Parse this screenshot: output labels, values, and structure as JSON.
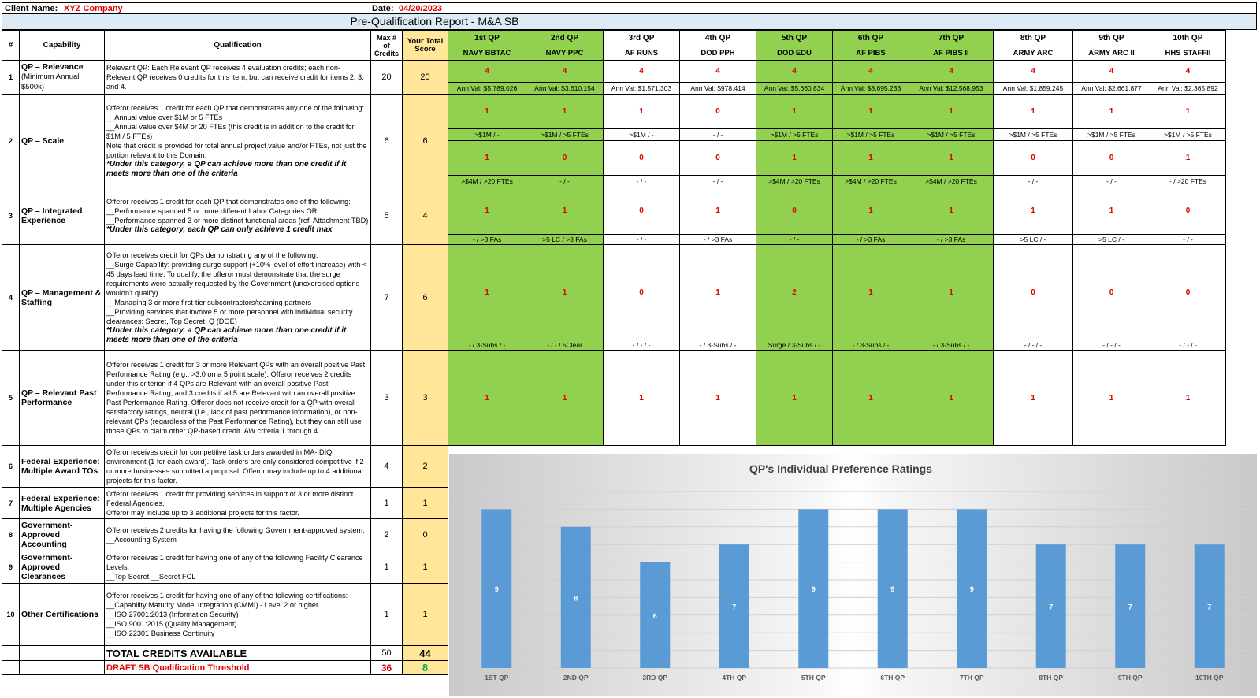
{
  "header": {
    "client_label": "Client Name:",
    "client_value": "XYZ Company",
    "date_label": "Date:",
    "date_value": "04/20/2023",
    "title": "Pre-Qualification Report - M&A SB"
  },
  "columns": {
    "num": "#",
    "capability": "Capability",
    "qualification": "Qualification",
    "max": "Max # of Credits",
    "score": "Your Total Score"
  },
  "qps": [
    {
      "label": "1st QP",
      "name": "NAVY BBTAC",
      "green": true
    },
    {
      "label": "2nd QP",
      "name": "NAVY PPC",
      "green": true
    },
    {
      "label": "3rd QP",
      "name": "AF RUNS",
      "green": false
    },
    {
      "label": "4th QP",
      "name": "DOD PPH",
      "green": false
    },
    {
      "label": "5th QP",
      "name": "DOD EDU",
      "green": true
    },
    {
      "label": "6th QP",
      "name": "AF PIBS",
      "green": true
    },
    {
      "label": "7th QP",
      "name": "AF PIBS II",
      "green": true
    },
    {
      "label": "8th QP",
      "name": "ARMY ARC",
      "green": false
    },
    {
      "label": "9th QP",
      "name": "ARMY ARC II",
      "green": false
    },
    {
      "label": "10th QP",
      "name": "HHS STAFFII",
      "green": false
    }
  ],
  "rows": [
    {
      "num": "1",
      "capability": "QP – Relevance",
      "capability_note": "(Minimum Annual $500k)",
      "qualification": "Relevant QP: Each Relevant QP receives 4 evaluation credits; each non-Relevant QP receives 0 credits for this item, but can receive credit for items 2, 3, and 4.",
      "note": "",
      "max": "20",
      "score": "20",
      "vals": [
        "4",
        "4",
        "4",
        "4",
        "4",
        "4",
        "4",
        "4",
        "4",
        "4"
      ],
      "subs": [
        "Ann Val: $5,789,026",
        "Ann Val: $3,610,154",
        "Ann Val: $1,571,303",
        "Ann Val: $978,414",
        "Ann Val: $5,660,834",
        "Ann Val: $8,695,233",
        "Ann Val: $12,568,953",
        "Ann Val: $1,859,245",
        "Ann Val: $2,661,877",
        "Ann Val: $2,365,892"
      ]
    },
    {
      "num": "2",
      "capability": "QP – Scale",
      "capability_note": "",
      "qualification": "Offeror receives 1 credit for each QP that demonstrates any one of the following:\n__Annual value over $1M or 5 FTEs\n__Annual value over $4M or 20 FTEs (this credit is in addition to the credit for $1M / 5 FTEs)\nNote that credit is provided for total annual project value and/or FTEs, not just the portion relevant to this Domain.",
      "note": "*Under this category, a QP can achieve more than one credit if it meets more than one of the criteria",
      "max": "6",
      "score": "6",
      "vals": [
        "1",
        "1",
        "1",
        "0",
        "1",
        "1",
        "1",
        "1",
        "1",
        "1"
      ],
      "subs": [
        ">$1M / -",
        ">$1M / >5 FTEs",
        ">$1M / -",
        "- / -",
        ">$1M / >5 FTEs",
        ">$1M / >5 FTEs",
        ">$1M / >5 FTEs",
        ">$1M / >5 FTEs",
        ">$1M / >5 FTEs",
        ">$1M / >5 FTEs"
      ],
      "vals2": [
        "1",
        "0",
        "0",
        "0",
        "1",
        "1",
        "1",
        "0",
        "0",
        "1"
      ],
      "subs2": [
        ">$4M / >20 FTEs",
        "- / -",
        "- / -",
        "- / -",
        ">$4M / >20 FTEs",
        ">$4M / >20 FTEs",
        ">$4M / >20 FTEs",
        "- / -",
        "- / -",
        "- / >20 FTEs"
      ]
    },
    {
      "num": "3",
      "capability": "QP – Integrated Experience",
      "capability_note": "",
      "qualification": "Offeror receives 1 credit for each QP that demonstrates one of the following:\n__Performance spanned 5 or more different Labor Categories OR\n__Performance spanned 3 or more distinct functional areas (ref. Attachment TBD)",
      "note": "*Under this category, each QP can only achieve 1 credit max",
      "max": "5",
      "score": "4",
      "vals": [
        "1",
        "1",
        "0",
        "1",
        "0",
        "1",
        "1",
        "1",
        "1",
        "0"
      ],
      "subs": [
        "- / >3 FAs",
        ">5 LC / >3 FAs",
        "- / -",
        "- / >3 FAs",
        "- / -",
        "- / >3 FAs",
        "- / >3 FAs",
        ">5 LC / -",
        ">5 LC / -",
        "- / -"
      ]
    },
    {
      "num": "4",
      "capability": "QP – Management & Staffing",
      "capability_note": "",
      "qualification": "Offeror receives credit for QPs demonstrating any of the following:\n__Surge Capability: providing surge support (+10% level of effort increase) with < 45 days lead time. To qualify, the offeror must demonstrate that the surge requirements were actually requested by the Government (unexercised options wouldn't qualify)\n__Managing 3 or more first-tier subcontractors/teaming partners\n__Providing services that involve 5 or more personnel with individual security clearances: Secret, Top Secret, Q (DOE)",
      "note": "*Under this category, a QP can achieve more than one credit if it meets more than one of the criteria",
      "max": "7",
      "score": "6",
      "vals": [
        "1",
        "1",
        "0",
        "1",
        "2",
        "1",
        "1",
        "0",
        "0",
        "0"
      ],
      "subs": [
        "- / 3-Subs / -",
        "- / - / 5Clear",
        "- / - / -",
        "- / 3-Subs / -",
        "Surge / 3-Subs / -",
        "- / 3-Subs / -",
        "- / 3-Subs / -",
        "- / - / -",
        "- / - / -",
        "- / - / -"
      ]
    },
    {
      "num": "5",
      "capability": "QP – Relevant Past Performance",
      "capability_note": "",
      "qualification": "Offeror receives 1 credit for 3 or more Relevant QPs with an overall positive Past Performance Rating (e.g., >3.0 on a 5 point scale). Offeror receives 2 credits under this criterion if 4 QPs are Relevant with an overall positive Past Performance Rating, and 3 credits if all 5 are Relevant with an overall positive Past Performance Rating. Offeror does not receive credit for a QP with overall satisfactory ratings, neutral (i.e., lack of past performance information), or non-relevant QPs (regardless of the Past Performance Rating), but they can still use those QPs to claim other QP-based credit IAW criteria 1 through 4.",
      "note": "",
      "max": "3",
      "score": "3",
      "vals": [
        "1",
        "1",
        "1",
        "1",
        "1",
        "1",
        "1",
        "1",
        "1",
        "1"
      ]
    },
    {
      "num": "6",
      "capability": "Federal Experience: Multiple Award TOs",
      "capability_note": "",
      "qualification": "Offeror receives credit for competitive task orders awarded in MA-IDIQ environment (1 for each award). Task orders are only considered competitive if 2 or more businesses submitted a proposal. Offeror may include up to 4 additional projects for this factor.",
      "note": "",
      "max": "4",
      "score": "2"
    },
    {
      "num": "7",
      "capability": "Federal Experience: Multiple Agencies",
      "capability_note": "",
      "qualification": "Offeror receives 1 credit for providing services in support of 3 or more distinct Federal Agencies.\nOfferor may include up to 3 additional projects for this factor.",
      "note": "",
      "max": "1",
      "score": "1"
    },
    {
      "num": "8",
      "capability": "Government-Approved Accounting",
      "capability_note": "",
      "qualification": "Offeror receives 2 credits for having the following Government-approved system:\n__Accounting System",
      "note": "",
      "max": "2",
      "score": "0"
    },
    {
      "num": "9",
      "capability": "Government-Approved Clearances",
      "capability_note": "",
      "qualification": "Offeror receives 1 credit for having one of any of the following Facility Clearance Levels:\n__Top Secret __Secret FCL",
      "note": "",
      "max": "1",
      "score": "1"
    },
    {
      "num": "10",
      "capability": "Other Certifications",
      "capability_note": "",
      "qualification": "Offeror receives 1 credit for having one of any of the following certifications:\n__Capability Maturity Model Integration (CMMI) - Level 2 or higher\n__ISO 27001:2013 (Information Security)\n__ISO 9001:2015 (Quality Management)\n__ISO 22301 Business Continuity",
      "note": "",
      "max": "1",
      "score": "1"
    }
  ],
  "totals": {
    "label": "TOTAL CREDITS AVAILABLE",
    "max": "50",
    "score": "44",
    "threshold_label": "DRAFT SB Qualification Threshold",
    "threshold_max": "36",
    "threshold_score": "8"
  },
  "colors": {
    "green": "#92d050",
    "score": "#ffe699",
    "title": "#ddebf7",
    "bar": "#5b9bd5",
    "red": "#e00000",
    "threshold": "#00b050"
  },
  "chart_data": {
    "type": "bar",
    "title": "QP's Individual Preference Ratings",
    "categories": [
      "1ST QP",
      "2ND QP",
      "3RD QP",
      "4TH QP",
      "5TH QP",
      "6TH QP",
      "7TH QP",
      "8TH QP",
      "9TH QP",
      "10TH QP"
    ],
    "values": [
      9,
      8,
      6,
      7,
      9,
      9,
      9,
      7,
      7,
      7
    ],
    "ylim": [
      0,
      10
    ],
    "grid": true
  }
}
